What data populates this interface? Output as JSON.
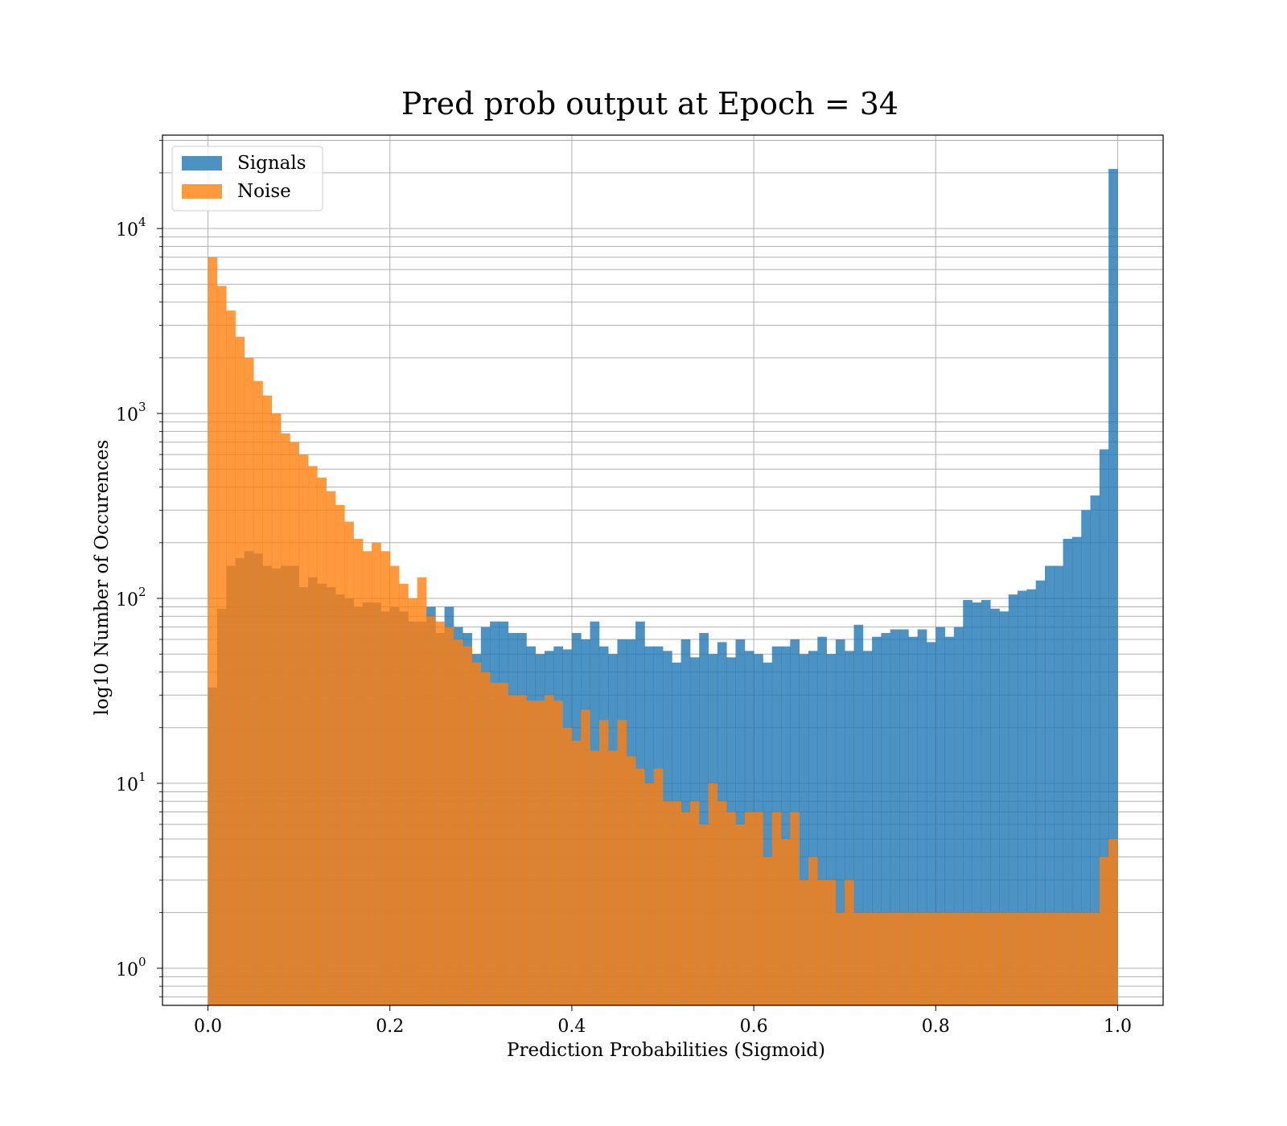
{
  "chart_data": {
    "type": "bar",
    "subtype": "overlaid-histogram",
    "title": "Pred prob output at Epoch = 34",
    "xlabel": "Prediction Probabilities (Sigmoid)",
    "ylabel": "log10 Number of Occurences",
    "xlim": [
      -0.05,
      1.05
    ],
    "ylim": [
      0.63,
      32000
    ],
    "yscale": "log",
    "grid": true,
    "legend": "top-left",
    "x_ticks": [
      {
        "value": 0.0,
        "label": "0.0"
      },
      {
        "value": 0.2,
        "label": "0.2"
      },
      {
        "value": 0.4,
        "label": "0.4"
      },
      {
        "value": 0.6,
        "label": "0.6"
      },
      {
        "value": 0.8,
        "label": "0.8"
      },
      {
        "value": 1.0,
        "label": "1.0"
      }
    ],
    "y_ticks": [
      {
        "value": 1,
        "base": "10",
        "exp": "0"
      },
      {
        "value": 10,
        "base": "10",
        "exp": "1"
      },
      {
        "value": 100,
        "base": "10",
        "exp": "2"
      },
      {
        "value": 1000,
        "base": "10",
        "exp": "3"
      },
      {
        "value": 10000,
        "base": "10",
        "exp": "4"
      }
    ],
    "bin_range": [
      0,
      1
    ],
    "series": [
      {
        "name": "Signals",
        "color": "#1f77b4",
        "values": [
          33,
          88,
          150,
          165,
          180,
          175,
          150,
          145,
          150,
          150,
          115,
          130,
          120,
          115,
          105,
          100,
          90,
          95,
          95,
          85,
          90,
          85,
          75,
          75,
          90,
          65,
          90,
          70,
          65,
          50,
          70,
          75,
          75,
          65,
          65,
          55,
          50,
          52,
          55,
          53,
          65,
          60,
          75,
          55,
          50,
          60,
          60,
          75,
          55,
          55,
          52,
          45,
          60,
          48,
          65,
          50,
          58,
          48,
          60,
          52,
          50,
          45,
          55,
          55,
          60,
          50,
          52,
          62,
          50,
          60,
          52,
          72,
          52,
          62,
          65,
          68,
          68,
          62,
          68,
          58,
          70,
          62,
          70,
          98,
          95,
          98,
          88,
          85,
          105,
          110,
          112,
          125,
          150,
          150,
          210,
          215,
          300,
          360,
          640,
          21000
        ]
      },
      {
        "name": "Noise",
        "color": "#ff7f0e",
        "values": [
          7000,
          4900,
          3600,
          2600,
          2000,
          1500,
          1250,
          1000,
          780,
          700,
          600,
          520,
          450,
          380,
          320,
          260,
          210,
          180,
          200,
          180,
          150,
          120,
          100,
          130,
          80,
          75,
          70,
          60,
          55,
          45,
          40,
          35,
          35,
          30,
          30,
          28,
          28,
          30,
          28,
          20,
          17,
          25,
          15,
          22,
          15,
          22,
          14,
          12,
          10,
          12,
          8,
          8,
          7,
          8,
          6,
          10,
          8,
          7,
          6,
          7,
          7,
          4,
          7,
          5,
          7,
          3,
          4,
          3,
          3,
          2,
          3,
          2,
          2,
          2,
          2,
          2,
          2,
          2,
          2,
          2,
          2,
          2,
          2,
          2,
          2,
          2,
          2,
          2,
          2,
          2,
          2,
          2,
          2,
          2,
          2,
          2,
          2,
          2,
          4,
          5
        ]
      }
    ]
  }
}
